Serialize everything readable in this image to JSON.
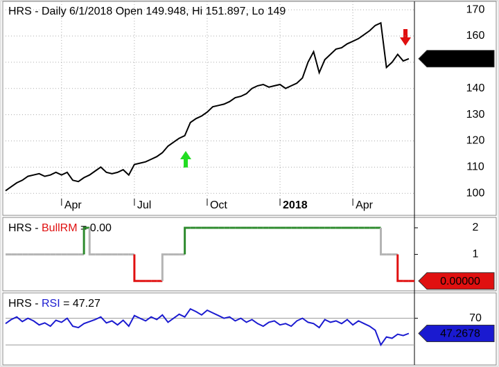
{
  "chart_data": [
    {
      "type": "line",
      "title": "HRS - Daily 6/1/2018 Open 149.948, Hi 151.897, Lo 149",
      "color": "#000000",
      "grid": true,
      "xlim": [
        0,
        73
      ],
      "ylim": [
        91.6,
        173.2
      ],
      "yticks": [
        100,
        110,
        120,
        130,
        140,
        150,
        160,
        170
      ],
      "xticks": [
        {
          "value": 10,
          "label": "Apr"
        },
        {
          "value": 23,
          "label": "Jul"
        },
        {
          "value": 36,
          "label": "Oct"
        },
        {
          "value": 49,
          "label": "2018",
          "bold": true
        },
        {
          "value": 62,
          "label": "Apr"
        }
      ],
      "tag_color": "#000000",
      "tag_text_color": "#ffffff",
      "values": [
        101,
        102.5,
        104,
        105,
        106.5,
        107,
        107.5,
        106.5,
        107,
        108,
        107,
        108,
        105,
        104.5,
        106,
        107,
        108.5,
        110,
        108,
        107.5,
        108,
        109,
        107,
        111,
        111.5,
        112,
        113,
        114,
        115.5,
        118,
        119.5,
        121,
        122,
        127,
        128.5,
        129.5,
        131,
        133,
        133.5,
        134,
        135,
        136.5,
        137,
        138,
        140,
        141,
        141.5,
        140.5,
        141,
        141.5,
        140,
        141,
        142,
        144,
        150,
        154,
        146,
        151,
        153,
        155,
        155.5,
        157,
        158,
        159,
        160.5,
        162,
        164,
        165,
        148,
        150,
        153,
        150.5,
        151.336
      ]
    },
    {
      "type": "step",
      "title_parts": [
        "HRS - ",
        "BullRM",
        " = 0.00"
      ],
      "color": "#e01010",
      "level_colors": [
        "#e01010",
        "#b4b4b4",
        "#2e8b2e"
      ],
      "xlim": [
        0,
        73
      ],
      "ylim": [
        -0.37,
        2.39
      ],
      "yticks": [
        1,
        2
      ],
      "tag_color": "#e01010",
      "tag_text_color": "#000000",
      "values": [
        1,
        1,
        1,
        1,
        1,
        1,
        1,
        1,
        1,
        1,
        1,
        1,
        1,
        1,
        2,
        1,
        1,
        1,
        1,
        1,
        1,
        1,
        1,
        0,
        0,
        0,
        0,
        0,
        1,
        1,
        1,
        1,
        2,
        2,
        2,
        2,
        2,
        2,
        2,
        2,
        2,
        2,
        2,
        2,
        2,
        2,
        2,
        2,
        2,
        2,
        2,
        2,
        2,
        2,
        2,
        2,
        2,
        2,
        2,
        2,
        2,
        2,
        2,
        2,
        2,
        2,
        2,
        1,
        1,
        1,
        0,
        0,
        0
      ],
      "value_labels": [
        null,
        null,
        null,
        null,
        null,
        null,
        null,
        null,
        null,
        null,
        null,
        null,
        null,
        null,
        null,
        null,
        null,
        null,
        null,
        null,
        null,
        null,
        null,
        null,
        null,
        null,
        null,
        null,
        null,
        null,
        null,
        null,
        null,
        null,
        null,
        null,
        null,
        null,
        null,
        null,
        null,
        null,
        null,
        null,
        null,
        null,
        null,
        null,
        null,
        null,
        null,
        null,
        null,
        null,
        null,
        null,
        null,
        null,
        null,
        null,
        null,
        null,
        null,
        null,
        null,
        null,
        null,
        null,
        null,
        null,
        null,
        null,
        "0.00000"
      ]
    },
    {
      "type": "line",
      "title_parts": [
        "HRS - ",
        "RSI",
        " = 47.27"
      ],
      "color": "#1a1ad0",
      "xlim": [
        0,
        73
      ],
      "ylim": [
        0,
        108
      ],
      "yticks": [
        70
      ],
      "reference_lines": [
        30,
        70
      ],
      "tag_color": "#1a1ad0",
      "tag_text_color": "#ffffff",
      "values": [
        62,
        68,
        72,
        65,
        70,
        66,
        60,
        63,
        58,
        67,
        64,
        70,
        58,
        56,
        62,
        65,
        68,
        72,
        63,
        66,
        60,
        67,
        58,
        74,
        70,
        66,
        72,
        68,
        75,
        64,
        70,
        76,
        72,
        84,
        80,
        75,
        82,
        78,
        74,
        70,
        72,
        66,
        70,
        64,
        68,
        62,
        58,
        64,
        66,
        60,
        62,
        58,
        66,
        70,
        64,
        62,
        56,
        68,
        64,
        66,
        62,
        68,
        60,
        66,
        62,
        58,
        52,
        30,
        42,
        40,
        46,
        44,
        47.2678
      ]
    }
  ]
}
